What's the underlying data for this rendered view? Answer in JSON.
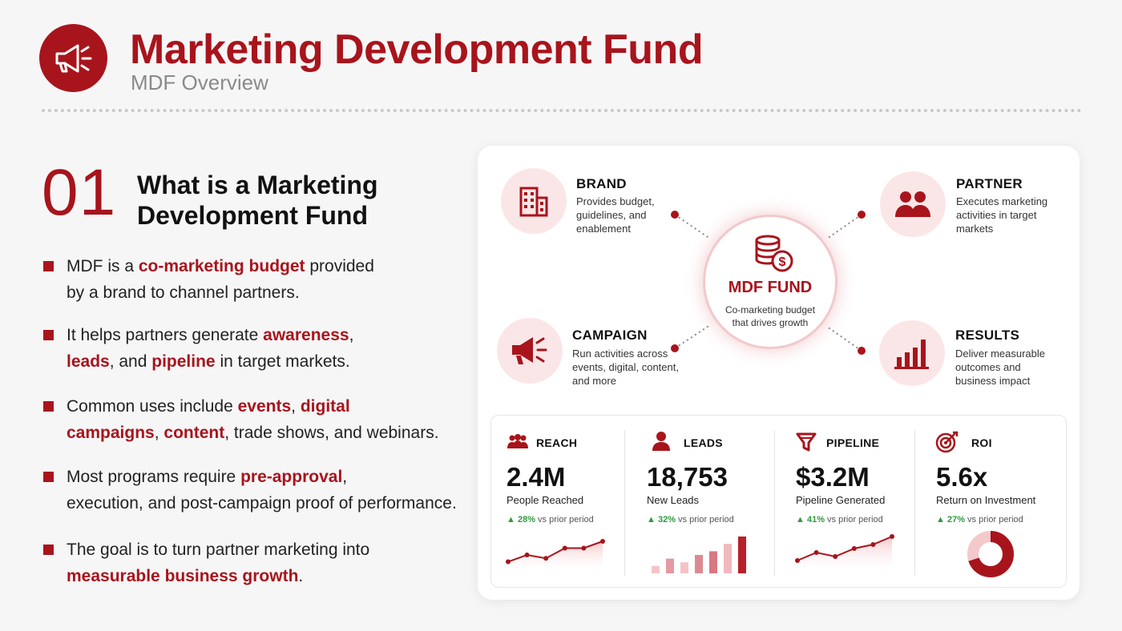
{
  "header": {
    "title": "Marketing Development Fund",
    "subtitle": "MDF Overview",
    "logo_icon": "megaphone-icon"
  },
  "section": {
    "number": "01",
    "title_line1": "What is a Marketing",
    "title_line2": "Development Fund"
  },
  "bullets": [
    {
      "parts": [
        [
          "MDF is a ",
          false
        ],
        [
          "co-marketing budget",
          true
        ],
        [
          " provided",
          false
        ]
      ],
      "line2": [
        [
          "by a brand to channel partners.",
          false
        ]
      ]
    },
    {
      "parts": [
        [
          "It helps partners generate ",
          false
        ],
        [
          "awareness",
          true
        ],
        [
          ",",
          false
        ]
      ],
      "line2": [
        [
          "leads",
          true
        ],
        [
          ", and ",
          false
        ],
        [
          "pipeline",
          true
        ],
        [
          " in target markets.",
          false
        ]
      ]
    },
    {
      "parts": [
        [
          "Common uses include ",
          false
        ],
        [
          "events",
          true
        ],
        [
          ", ",
          false
        ],
        [
          "digital",
          true
        ]
      ],
      "line2": [
        [
          "campaigns",
          true
        ],
        [
          ", ",
          false
        ],
        [
          "content",
          true
        ],
        [
          ", trade shows, and webinars.",
          false
        ]
      ]
    },
    {
      "parts": [
        [
          "Most programs require ",
          false
        ],
        [
          "pre-approval",
          true
        ],
        [
          ",",
          false
        ]
      ],
      "line2": [
        [
          "execution, and post-campaign proof of performance.",
          false
        ]
      ]
    },
    {
      "parts": [
        [
          "The goal is to turn partner marketing into",
          false
        ]
      ],
      "line2": [
        [
          "measurable business growth",
          true
        ],
        [
          ".",
          false
        ]
      ]
    }
  ],
  "diagram": {
    "hub": {
      "title": "MDF FUND",
      "desc_line1": "Co-marketing budget",
      "desc_line2": "that drives growth",
      "icon": "coins-dollar-icon"
    },
    "nodes": {
      "brand": {
        "title": "BRAND",
        "desc": [
          "Provides budget,",
          "guidelines, and",
          "enablement"
        ],
        "icon": "building-icon"
      },
      "partner": {
        "title": "PARTNER",
        "desc": [
          "Executes marketing",
          "activities in target",
          "markets"
        ],
        "icon": "people-icon"
      },
      "campaign": {
        "title": "CAMPAIGN",
        "desc": [
          "Run activities across",
          "events, digital, content,",
          "and more"
        ],
        "icon": "megaphone-icon"
      },
      "results": {
        "title": "RESULTS",
        "desc": [
          "Deliver measurable",
          "outcomes and",
          "business impact"
        ],
        "icon": "bar-chart-icon"
      }
    }
  },
  "metrics": [
    {
      "label": "REACH",
      "value": "2.4M",
      "sub": "People Reached",
      "change": "28%",
      "change_suffix": "vs prior period",
      "icon": "people-icon"
    },
    {
      "label": "LEADS",
      "value": "18,753",
      "sub": "New Leads",
      "change": "32%",
      "change_suffix": "vs prior period",
      "icon": "person-icon"
    },
    {
      "label": "PIPELINE",
      "value": "$3.2M",
      "sub": "Pipeline Generated",
      "change": "41%",
      "change_suffix": "vs prior period",
      "icon": "funnel-icon"
    },
    {
      "label": "ROI",
      "value": "5.6x",
      "sub": "Return on Investment",
      "change": "27%",
      "change_suffix": "vs prior period",
      "icon": "target-icon"
    }
  ],
  "sparklines": {
    "reach": [
      2,
      4,
      3,
      6,
      6,
      8
    ],
    "leads": [
      2,
      4,
      3,
      5,
      6,
      8,
      10
    ],
    "pipeline": [
      2,
      4,
      3,
      5,
      6,
      8
    ],
    "roi_fraction": 0.7
  },
  "colors": {
    "accent": "#a8141c",
    "accent_light": "#fbe6e7",
    "positive": "#2e9a3e"
  }
}
